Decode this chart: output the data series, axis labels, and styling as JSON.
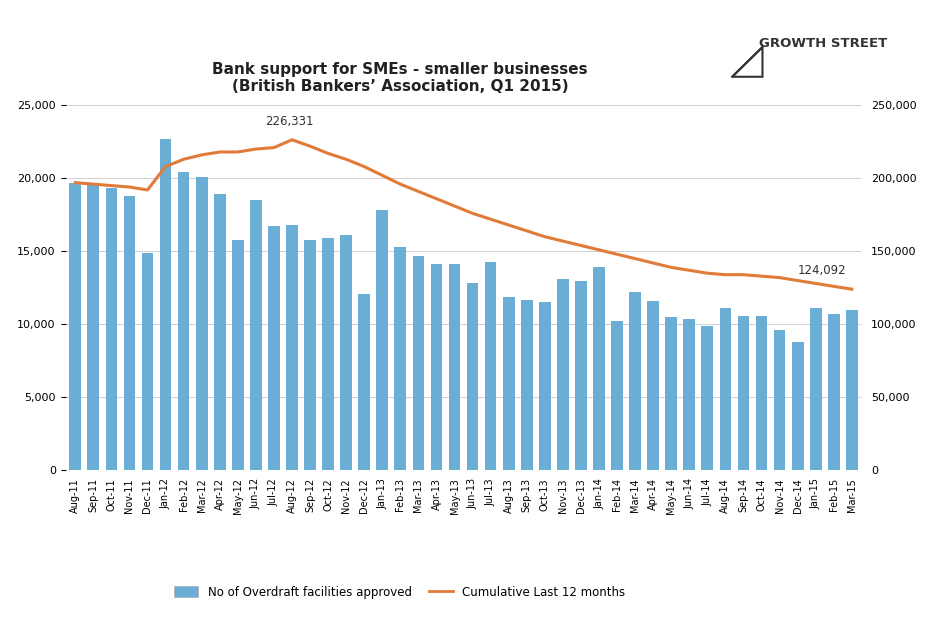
{
  "title_line1": "Bank support for SMEs - smaller businesses",
  "title_line2": "(British Bankers’ Association, Q1 2015)",
  "categories": [
    "Aug-11",
    "Sep-11",
    "Oct-11",
    "Nov-11",
    "Dec-11",
    "Jan-12",
    "Feb-12",
    "Mar-12",
    "Apr-12",
    "May-12",
    "Jun-12",
    "Jul-12",
    "Aug-12",
    "Sep-12",
    "Oct-12",
    "Nov-12",
    "Dec-12",
    "Jan-13",
    "Feb-13",
    "Mar-13",
    "Apr-13",
    "May-13",
    "Jun-13",
    "Jul-13",
    "Aug-13",
    "Sep-13",
    "Oct-13",
    "Nov-13",
    "Dec-13",
    "Jan-14",
    "Feb-14",
    "Mar-14",
    "Apr-14",
    "May-14",
    "Jun-14",
    "Jul-14",
    "Aug-14",
    "Sep-14",
    "Oct-14",
    "Nov-14",
    "Dec-14",
    "Jan-15",
    "Feb-15",
    "Mar-15"
  ],
  "bar_values": [
    19700,
    19700,
    19300,
    18800,
    14900,
    22700,
    20400,
    20100,
    18900,
    15800,
    18500,
    16700,
    16800,
    15800,
    15900,
    16100,
    12100,
    17800,
    15300,
    14700,
    14100,
    14100,
    12800,
    14300,
    11900,
    11700,
    11500,
    13100,
    13000,
    13900,
    10200,
    12200,
    11600,
    10500,
    10400,
    9900,
    11100,
    10600,
    10600,
    9600,
    8800,
    11100,
    10700,
    11000
  ],
  "cumulative_values": [
    197000,
    196000,
    195000,
    194000,
    192000,
    208000,
    213000,
    216000,
    218000,
    218000,
    220000,
    221000,
    226331,
    222000,
    217000,
    213000,
    208000,
    202000,
    196000,
    191000,
    186000,
    181000,
    176000,
    172000,
    168000,
    164000,
    160000,
    157000,
    154000,
    151000,
    148000,
    145000,
    142000,
    139000,
    137000,
    135000,
    134000,
    134000,
    133000,
    132000,
    130000,
    128000,
    126000,
    124092
  ],
  "bar_color": "#6aaed6",
  "line_color": "#e07b39",
  "annotation_text_1": "226,331",
  "annotation_text_2": "124,092",
  "ylim_left": [
    0,
    25000
  ],
  "ylim_right": [
    0,
    250000
  ],
  "yticks_left": [
    0,
    5000,
    10000,
    15000,
    20000,
    25000
  ],
  "yticks_right": [
    0,
    50000,
    100000,
    150000,
    200000,
    250000
  ],
  "background_color": "#ffffff",
  "grid_color": "#d0d0d0"
}
